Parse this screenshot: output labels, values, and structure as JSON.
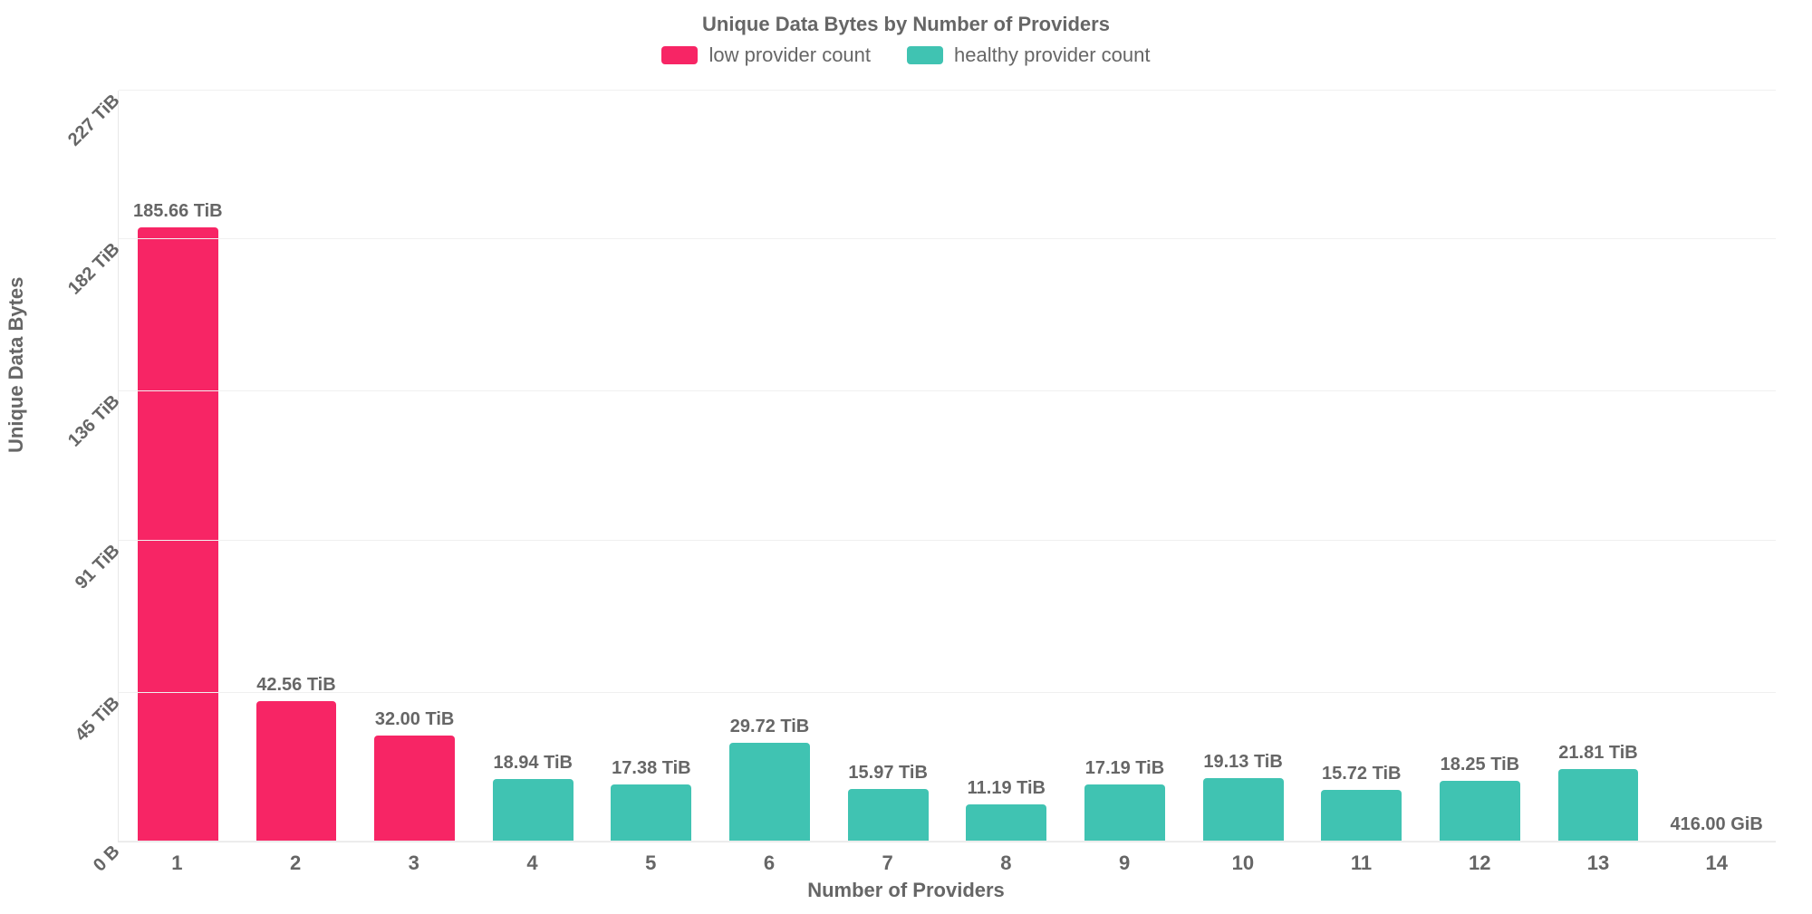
{
  "chart": {
    "type": "bar",
    "title": "Unique Data Bytes by Number of Providers",
    "title_fontsize": 22,
    "title_color": "#666666",
    "xlabel": "Number of Providers",
    "ylabel": "Unique Data Bytes",
    "label_fontsize": 22,
    "label_color": "#666666",
    "background_color": "#ffffff",
    "grid_color": "#f0f0f0",
    "axis_color": "#e8e8e8",
    "bar_width": 0.68,
    "value_label_fontsize": 20,
    "tick_fontsize": 22,
    "y_ticks": [
      {
        "value": 0,
        "label": "0 B"
      },
      {
        "value": 45,
        "label": "45 TiB"
      },
      {
        "value": 91,
        "label": "91 TiB"
      },
      {
        "value": 136,
        "label": "136 TiB"
      },
      {
        "value": 182,
        "label": "182 TiB"
      },
      {
        "value": 227,
        "label": "227 TiB"
      }
    ],
    "ylim": [
      0,
      227
    ],
    "legend": {
      "items": [
        {
          "label": "low provider count",
          "color": "#f72565"
        },
        {
          "label": "healthy provider count",
          "color": "#40c3b2"
        }
      ],
      "fontsize": 22
    },
    "colors": {
      "low": "#f72565",
      "healthy": "#40c3b2"
    },
    "bars": [
      {
        "x": "1",
        "value_tib": 185.66,
        "label": "185.66 TiB",
        "series": "low"
      },
      {
        "x": "2",
        "value_tib": 42.56,
        "label": "42.56 TiB",
        "series": "low"
      },
      {
        "x": "3",
        "value_tib": 32.0,
        "label": "32.00 TiB",
        "series": "low"
      },
      {
        "x": "4",
        "value_tib": 18.94,
        "label": "18.94 TiB",
        "series": "healthy"
      },
      {
        "x": "5",
        "value_tib": 17.38,
        "label": "17.38 TiB",
        "series": "healthy"
      },
      {
        "x": "6",
        "value_tib": 29.72,
        "label": "29.72 TiB",
        "series": "healthy"
      },
      {
        "x": "7",
        "value_tib": 15.97,
        "label": "15.97 TiB",
        "series": "healthy"
      },
      {
        "x": "8",
        "value_tib": 11.19,
        "label": "11.19 TiB",
        "series": "healthy"
      },
      {
        "x": "9",
        "value_tib": 17.19,
        "label": "17.19 TiB",
        "series": "healthy"
      },
      {
        "x": "10",
        "value_tib": 19.13,
        "label": "19.13 TiB",
        "series": "healthy"
      },
      {
        "x": "11",
        "value_tib": 15.72,
        "label": "15.72 TiB",
        "series": "healthy"
      },
      {
        "x": "12",
        "value_tib": 18.25,
        "label": "18.25 TiB",
        "series": "healthy"
      },
      {
        "x": "13",
        "value_tib": 21.81,
        "label": "21.81 TiB",
        "series": "healthy"
      },
      {
        "x": "14",
        "value_tib": 0.41,
        "label": "416.00 GiB",
        "series": "healthy"
      }
    ]
  }
}
